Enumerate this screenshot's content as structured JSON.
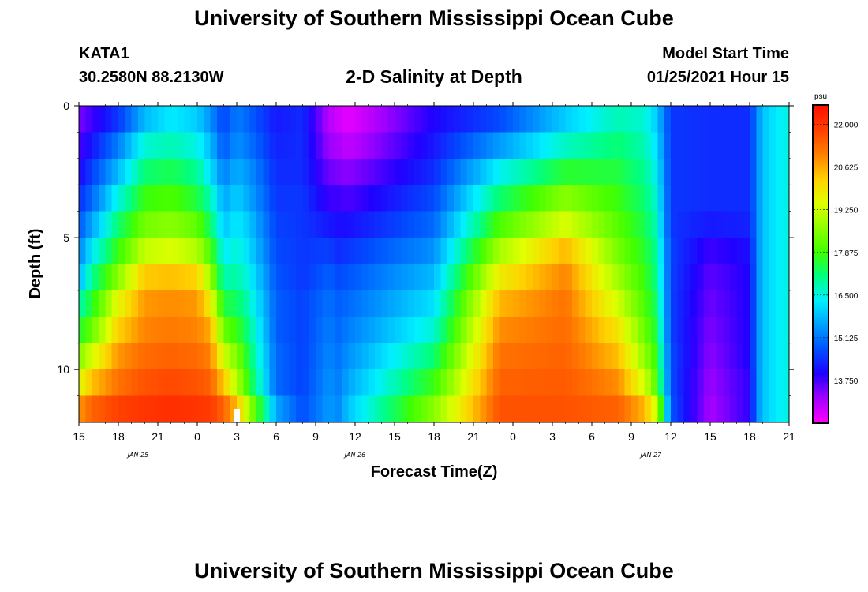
{
  "header": {
    "title": "University of Southern Mississippi Ocean Cube",
    "station": "KATA1",
    "coords": "30.2580N 88.2130W",
    "chart_title": "2-D Salinity at Depth",
    "model_label": "Model Start Time",
    "model_time": "01/25/2021 Hour 15"
  },
  "footer": {
    "title": "University of Southern Mississippi Ocean Cube"
  },
  "colors": {
    "scale": [
      "#ff00ff",
      "#a000ff",
      "#2000ff",
      "#0050ff",
      "#00a0ff",
      "#00f0ff",
      "#00ff80",
      "#40ff00",
      "#90ff00",
      "#e0ff00",
      "#ffd000",
      "#ff8000",
      "#ff4000",
      "#ff1000"
    ]
  },
  "chart_data": {
    "type": "heatmap",
    "variable": "Salinity",
    "unit": "psu",
    "xlabel": "Forecast Time(Z)",
    "ylabel": "Depth (ft)",
    "x_range_hours": [
      0,
      54
    ],
    "x_ticks": [
      "15",
      "18",
      "21",
      "0",
      "3",
      "6",
      "9",
      "12",
      "15",
      "18",
      "21",
      "0",
      "3",
      "6",
      "9",
      "12",
      "15",
      "18",
      "21"
    ],
    "date_labels": [
      {
        "text": "JAN 25",
        "hour": 4.5
      },
      {
        "text": "JAN 26",
        "hour": 21
      },
      {
        "text": "JAN 27",
        "hour": 43.5
      }
    ],
    "y_range": [
      0,
      12
    ],
    "y_ticks": [
      0,
      5,
      10
    ],
    "colorbar": {
      "min": 12.4,
      "max": 22.6,
      "ticks": [
        "22.000",
        "20.625",
        "19.250",
        "17.875",
        "16.500",
        "15.125",
        "13.750"
      ]
    },
    "marker_hour": 12,
    "depth_levels": [
      0.5,
      1.5,
      2.5,
      3.5,
      4.5,
      5.5,
      6.5,
      7.5,
      8.5,
      9.5,
      10.5,
      11.5
    ],
    "profile_times": [
      0,
      1,
      3,
      5,
      7,
      9,
      10,
      11,
      12,
      13,
      15,
      17,
      19,
      19.7,
      20.5,
      27,
      32,
      37,
      41,
      43,
      43.9,
      45,
      48,
      51,
      51.6,
      52.1,
      53,
      54
    ],
    "profiles": [
      [
        13.4,
        13.7,
        14.0,
        14.4,
        14.8,
        15.2,
        15.7,
        16.8,
        17.5,
        18.5,
        19.5,
        20.8
      ],
      [
        13.8,
        14.2,
        14.6,
        15.0,
        15.6,
        16.3,
        17.0,
        17.6,
        18.3,
        19.4,
        20.4,
        21.4
      ],
      [
        14.5,
        15.2,
        15.8,
        16.5,
        17.2,
        17.8,
        18.6,
        19.6,
        20.2,
        20.8,
        21.2,
        21.8
      ],
      [
        15.8,
        16.6,
        17.2,
        17.8,
        18.4,
        19.2,
        20.3,
        20.8,
        21.0,
        21.3,
        21.6,
        22.0
      ],
      [
        16.3,
        16.8,
        17.4,
        18.0,
        18.6,
        19.4,
        20.4,
        20.9,
        21.1,
        21.4,
        21.7,
        22.1
      ],
      [
        16.0,
        16.5,
        17.0,
        17.5,
        18.2,
        19.0,
        20.2,
        20.8,
        21.0,
        21.3,
        21.6,
        22.0
      ],
      [
        15.4,
        15.8,
        16.2,
        16.8,
        17.3,
        18.0,
        18.8,
        19.8,
        20.6,
        21.0,
        21.4,
        21.9
      ],
      [
        14.6,
        14.8,
        15.2,
        15.6,
        15.9,
        16.3,
        16.8,
        17.5,
        18.3,
        19.3,
        20.3,
        21.4
      ],
      [
        15.2,
        15.4,
        15.7,
        16.0,
        16.3,
        16.6,
        16.9,
        17.3,
        17.8,
        18.5,
        19.0,
        20.4
      ],
      [
        14.9,
        15.1,
        15.4,
        15.6,
        15.9,
        16.1,
        16.4,
        16.7,
        17.0,
        17.3,
        17.6,
        18.8
      ],
      [
        14.2,
        14.3,
        14.4,
        14.5,
        14.6,
        14.7,
        14.8,
        14.9,
        14.9,
        15.0,
        15.0,
        15.6
      ],
      [
        14.4,
        14.4,
        14.4,
        14.5,
        14.5,
        14.5,
        14.5,
        14.6,
        14.6,
        14.6,
        14.6,
        14.7
      ],
      [
        13.0,
        13.2,
        13.5,
        13.8,
        14.2,
        14.6,
        14.9,
        15.1,
        15.2,
        15.3,
        15.4,
        15.5
      ],
      [
        12.8,
        13.1,
        13.4,
        13.8,
        14.1,
        14.4,
        14.7,
        14.9,
        15.0,
        15.1,
        15.2,
        15.3
      ],
      [
        12.6,
        12.9,
        13.3,
        13.7,
        14.1,
        14.5,
        14.8,
        15.0,
        15.2,
        15.4,
        15.6,
        15.9
      ],
      [
        14.0,
        14.2,
        14.4,
        14.7,
        15.0,
        15.4,
        15.8,
        16.2,
        16.6,
        17.2,
        17.8,
        18.6
      ],
      [
        14.7,
        15.5,
        16.4,
        17.2,
        18.0,
        18.9,
        19.8,
        20.5,
        20.9,
        21.2,
        21.4,
        21.6
      ],
      [
        16.0,
        16.7,
        17.6,
        18.6,
        19.4,
        20.5,
        21.0,
        21.2,
        21.3,
        21.4,
        21.5,
        21.6
      ],
      [
        16.8,
        17.2,
        17.5,
        17.8,
        18.1,
        18.4,
        18.8,
        19.3,
        19.9,
        20.4,
        20.9,
        21.4
      ],
      [
        16.6,
        16.8,
        17.0,
        17.2,
        17.4,
        17.6,
        17.8,
        18.0,
        18.3,
        18.7,
        19.3,
        20.5
      ],
      [
        16.0,
        16.2,
        16.4,
        16.6,
        16.8,
        17.0,
        17.1,
        17.3,
        17.5,
        17.8,
        18.1,
        19.3
      ],
      [
        14.5,
        14.5,
        14.5,
        14.5,
        14.5,
        14.6,
        14.6,
        14.6,
        14.6,
        14.7,
        14.7,
        14.8
      ],
      [
        14.4,
        14.4,
        14.4,
        14.4,
        14.2,
        13.8,
        13.6,
        13.5,
        13.4,
        13.3,
        13.2,
        13.1
      ],
      [
        14.4,
        14.4,
        14.4,
        14.4,
        14.3,
        14.1,
        14.0,
        14.0,
        14.0,
        14.0,
        13.9,
        13.9
      ],
      [
        15.4,
        15.4,
        15.4,
        15.4,
        15.4,
        15.4,
        15.4,
        15.4,
        15.4,
        15.4,
        15.4,
        15.4
      ],
      [
        15.9,
        15.9,
        15.9,
        15.9,
        15.9,
        15.9,
        15.9,
        15.9,
        15.9,
        15.9,
        15.9,
        15.9
      ],
      [
        16.3,
        16.3,
        16.3,
        16.3,
        16.3,
        16.3,
        16.3,
        16.3,
        16.3,
        16.3,
        16.3,
        16.3
      ],
      [
        16.5,
        16.5,
        16.5,
        16.5,
        16.5,
        16.5,
        16.5,
        16.5,
        16.5,
        16.5,
        16.5,
        16.5
      ]
    ]
  }
}
